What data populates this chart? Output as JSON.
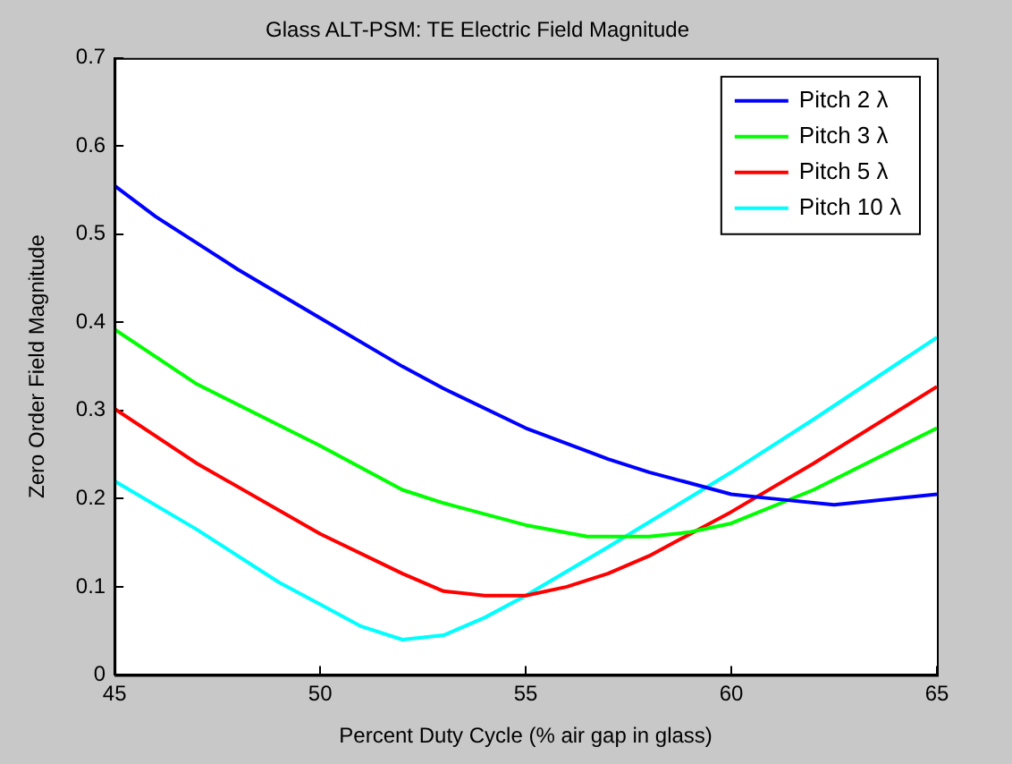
{
  "chart_data": {
    "type": "line",
    "title": "Glass ALT-PSM: TE Electric Field Magnitude",
    "xlabel": "Percent Duty Cycle (% air gap in glass)",
    "ylabel": "Zero Order Field Magnitude",
    "xlim": [
      45,
      65
    ],
    "xticks": [
      45,
      50,
      55,
      60,
      65
    ],
    "ylim": [
      0,
      0.7
    ],
    "yticks": [
      0,
      0.1,
      0.2,
      0.3,
      0.4,
      0.5,
      0.6,
      0.7
    ],
    "grid": false,
    "legend": "top right",
    "marker": "none",
    "line_style": "solid",
    "series": [
      {
        "name": "Pitch 2 λ",
        "color": "#0000ff",
        "x": [
          45,
          46,
          47,
          48,
          50,
          52,
          53,
          55,
          57,
          58,
          60,
          61,
          62.5,
          65
        ],
        "values": [
          0.555,
          0.52,
          0.49,
          0.46,
          0.405,
          0.35,
          0.325,
          0.28,
          0.245,
          0.23,
          0.205,
          0.2,
          0.193,
          0.205
        ]
      },
      {
        "name": "Pitch 3 λ",
        "color": "#00ff00",
        "x": [
          45,
          47,
          50,
          52,
          53,
          55,
          56.5,
          58,
          59,
          60,
          62,
          65
        ],
        "values": [
          0.392,
          0.33,
          0.26,
          0.21,
          0.195,
          0.17,
          0.157,
          0.157,
          0.162,
          0.172,
          0.21,
          0.28
        ]
      },
      {
        "name": "Pitch 5 λ",
        "color": "#ff0000",
        "x": [
          45,
          47,
          50,
          52,
          53,
          54,
          55,
          56,
          57,
          58,
          60,
          62,
          65
        ],
        "values": [
          0.302,
          0.24,
          0.16,
          0.115,
          0.095,
          0.09,
          0.09,
          0.1,
          0.115,
          0.135,
          0.185,
          0.24,
          0.327
        ]
      },
      {
        "name": "Pitch 10 λ",
        "color": "#00ffff",
        "x": [
          45,
          47,
          49,
          50,
          51,
          52,
          53,
          54,
          55,
          57,
          60,
          62,
          65
        ],
        "values": [
          0.22,
          0.165,
          0.105,
          0.08,
          0.055,
          0.04,
          0.045,
          0.065,
          0.09,
          0.145,
          0.23,
          0.29,
          0.383
        ]
      }
    ]
  }
}
